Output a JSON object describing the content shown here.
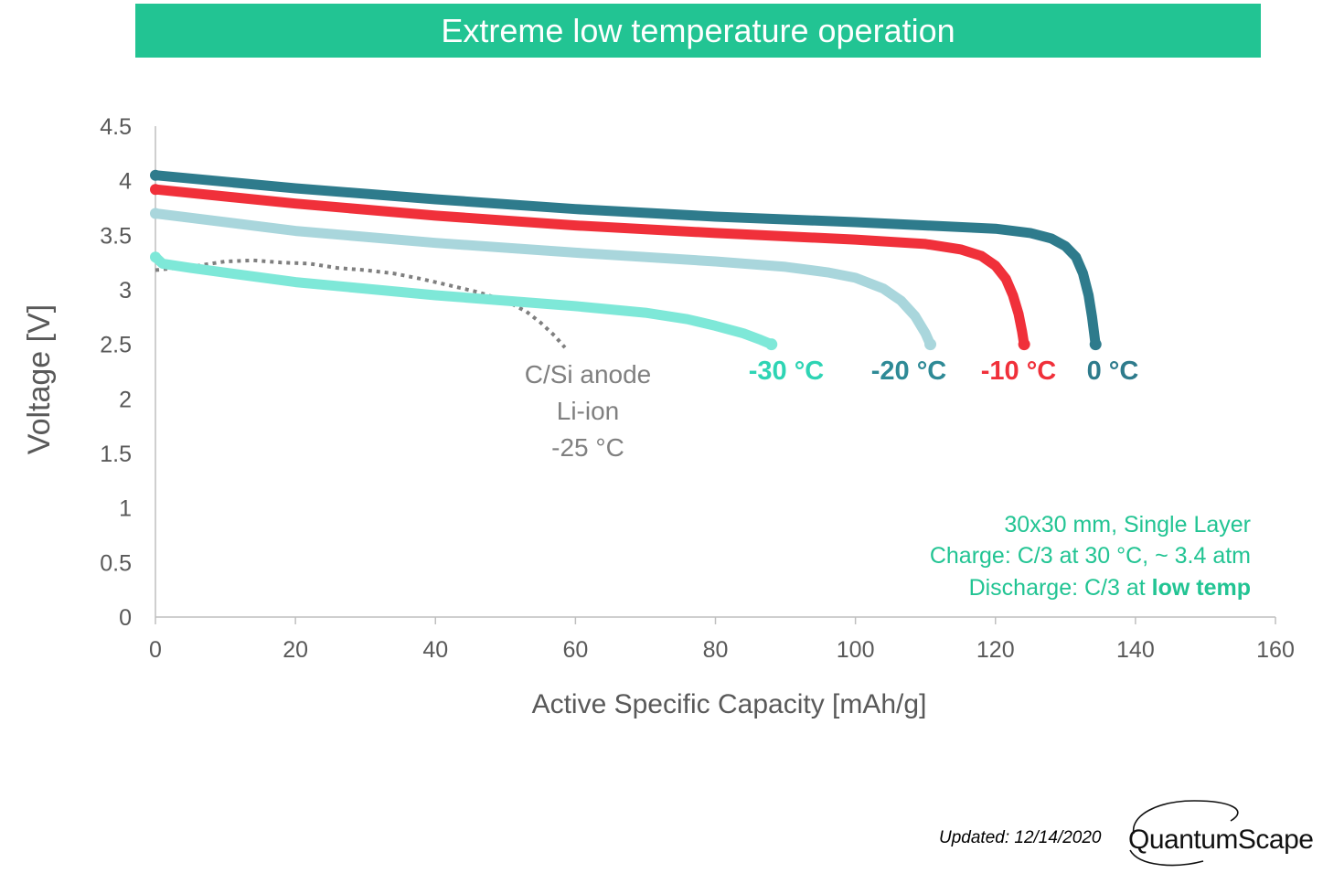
{
  "banner": {
    "title": "Extreme low temperature operation"
  },
  "footer": {
    "updated": "Updated: 12/14/2020",
    "logo_text": "QuantumScape"
  },
  "colors": {
    "banner": "#22c493",
    "axis_text": "#595959",
    "note": "#22c493"
  },
  "chart_data": {
    "type": "line",
    "title": "",
    "xlabel": "Active Specific Capacity [mAh/g]",
    "ylabel": "Voltage [V]",
    "xlim": [
      0,
      160
    ],
    "ylim": [
      0,
      4.5
    ],
    "xticks": [
      0,
      20,
      40,
      60,
      80,
      100,
      120,
      140,
      160
    ],
    "yticks": [
      0,
      0.5,
      1,
      1.5,
      2,
      2.5,
      3,
      3.5,
      4,
      4.5
    ],
    "xtick_labels": [
      "0",
      "20",
      "40",
      "60",
      "80",
      "100",
      "120",
      "140",
      "160"
    ],
    "ytick_labels": [
      "0",
      "0.5",
      "1",
      "1.5",
      "2",
      "2.5",
      "3",
      "3.5",
      "4",
      "4.5"
    ],
    "grid": false,
    "series": [
      {
        "name": "0 °C",
        "color": "#2e7b8c",
        "style": "solid",
        "x": [
          0,
          20,
          40,
          60,
          80,
          100,
          110,
          120,
          125,
          128,
          130,
          131.5,
          132.5,
          133.3,
          133.8,
          134.1,
          134.3
        ],
        "y": [
          4.05,
          3.93,
          3.83,
          3.74,
          3.67,
          3.62,
          3.59,
          3.56,
          3.52,
          3.47,
          3.4,
          3.3,
          3.15,
          2.95,
          2.75,
          2.6,
          2.5
        ]
      },
      {
        "name": "-10 °C",
        "color": "#f0303a",
        "style": "solid",
        "x": [
          0,
          20,
          40,
          60,
          80,
          100,
          110,
          115,
          118,
          120,
          121.5,
          122.5,
          123.3,
          123.8,
          124.1
        ],
        "y": [
          3.92,
          3.79,
          3.68,
          3.59,
          3.52,
          3.46,
          3.42,
          3.37,
          3.31,
          3.22,
          3.1,
          2.95,
          2.78,
          2.62,
          2.5
        ]
      },
      {
        "name": "-20 °C",
        "color": "#a9d6dc",
        "style": "solid",
        "x": [
          0,
          20,
          40,
          60,
          80,
          90,
          96,
          100,
          104,
          106.5,
          108.5,
          110,
          110.7
        ],
        "y": [
          3.7,
          3.54,
          3.43,
          3.34,
          3.26,
          3.21,
          3.16,
          3.11,
          3.01,
          2.9,
          2.76,
          2.6,
          2.5
        ]
      },
      {
        "name": "-30 °C",
        "color": "#7ee8d8",
        "style": "solid",
        "x": [
          0,
          1,
          5,
          20,
          40,
          60,
          70,
          76,
          80,
          84,
          86.5,
          88
        ],
        "y": [
          3.3,
          3.24,
          3.2,
          3.07,
          2.95,
          2.85,
          2.79,
          2.73,
          2.67,
          2.6,
          2.54,
          2.5
        ]
      },
      {
        "name": "C/Si anode Li-ion -25 °C",
        "color": "#7f7f7f",
        "style": "dotted",
        "x": [
          0,
          3,
          6,
          10,
          14,
          18,
          22,
          26,
          30,
          34,
          38,
          42,
          46,
          50,
          53,
          55,
          57,
          58.5
        ],
        "y": [
          3.18,
          3.2,
          3.22,
          3.26,
          3.27,
          3.25,
          3.24,
          3.2,
          3.18,
          3.15,
          3.1,
          3.04,
          2.98,
          2.9,
          2.8,
          2.7,
          2.58,
          2.47
        ]
      }
    ],
    "labels": {
      "s0": "0 °C",
      "s1": "-10 °C",
      "s2": "-20 °C",
      "s3": "-30 °C",
      "csi_line1": "C/Si anode",
      "csi_line2": "Li-ion",
      "csi_line3": "-25 °C"
    },
    "label_colors": {
      "s0": "#2e7b8c",
      "s1": "#f0303a",
      "s2": "#2e8a96",
      "s3": "#2ed4b4",
      "csi": "#808080"
    },
    "annotations": {
      "line1": "30x30 mm, Single Layer",
      "line2": "Charge: C/3 at 30 °C, ~ 3.4 atm",
      "line3_prefix": "Discharge: C/3 at ",
      "line3_bold": "low temp"
    }
  }
}
